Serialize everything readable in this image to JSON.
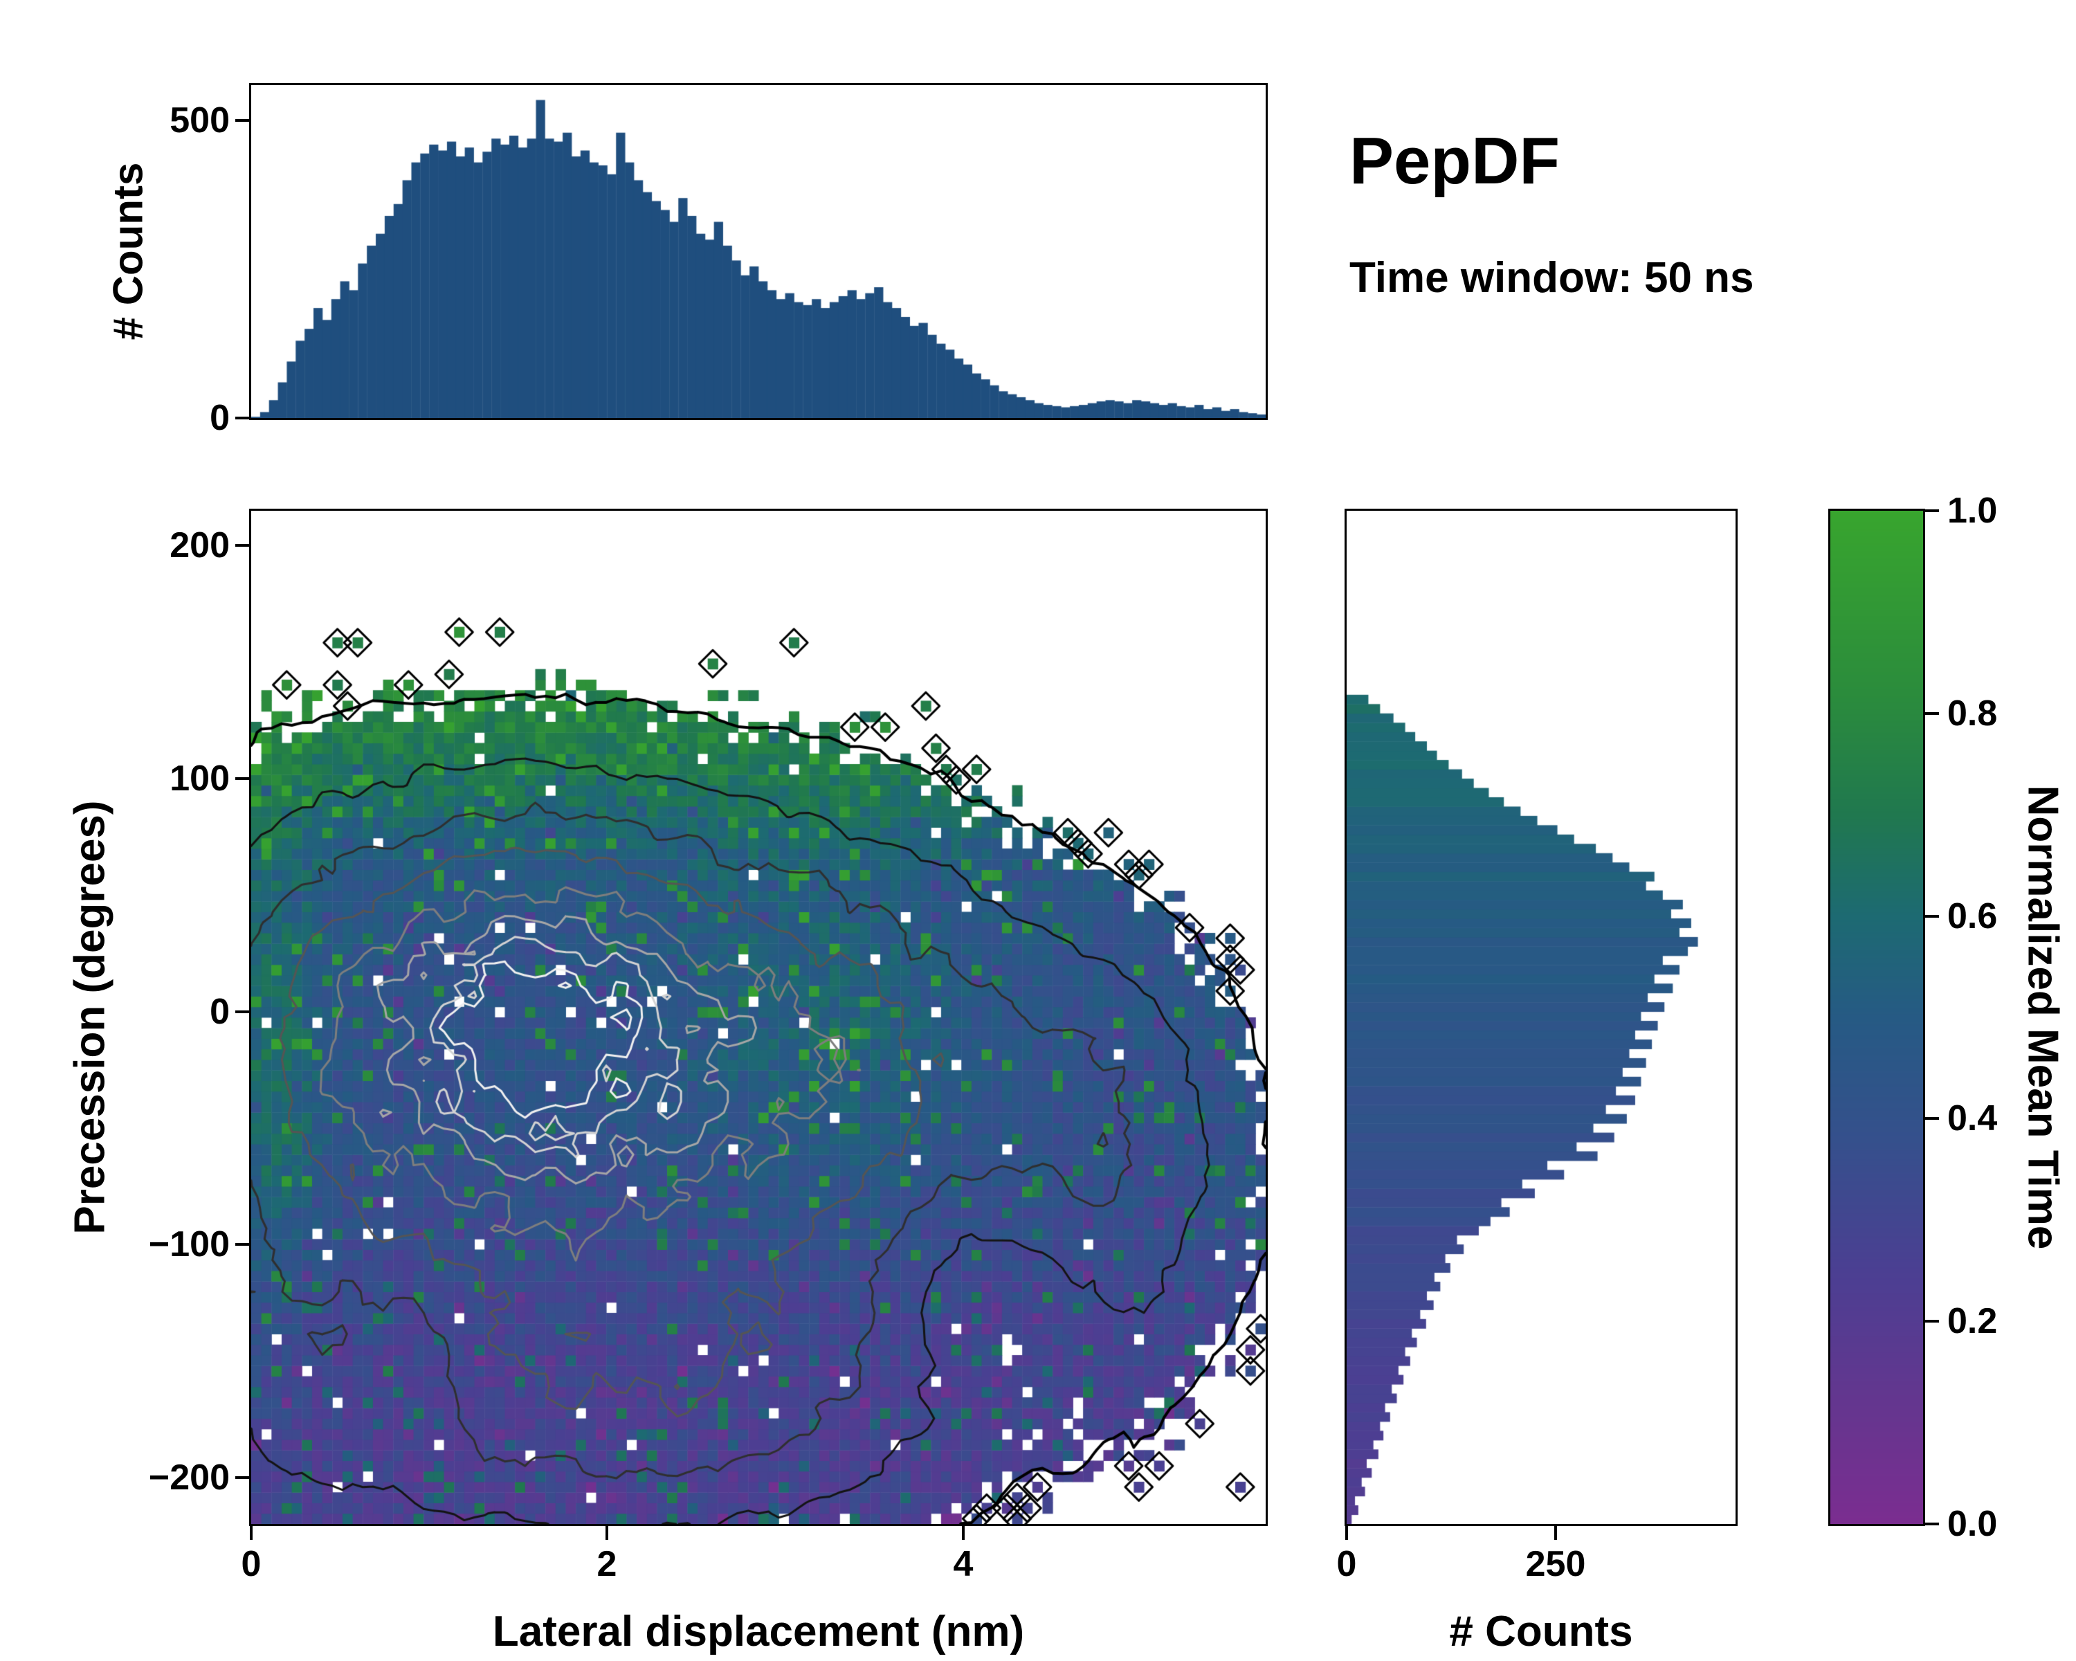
{
  "figure": {
    "title": "PepDF",
    "subtitle": "Time window: 50 ns"
  },
  "colors": {
    "background": "#ffffff",
    "axis": "#000000",
    "histogram_bar": "#1f4e7e",
    "colormap_stops": [
      [
        0.0,
        "#7b2d90"
      ],
      [
        0.12,
        "#64368f"
      ],
      [
        0.25,
        "#4b3f92"
      ],
      [
        0.38,
        "#35508c"
      ],
      [
        0.5,
        "#265a84"
      ],
      [
        0.6,
        "#1d6a72"
      ],
      [
        0.7,
        "#20784f"
      ],
      [
        0.82,
        "#2b8c3c"
      ],
      [
        1.0,
        "#38a52e"
      ]
    ]
  },
  "chart_data": [
    {
      "name": "top_histogram",
      "type": "bar",
      "xlabel": "",
      "ylabel": "# Counts",
      "xlim": [
        0,
        5.7
      ],
      "ylim": [
        0,
        560
      ],
      "yticks": [
        500,
        0
      ],
      "ytick_labels": [
        "500",
        "0"
      ],
      "bin_start": 0,
      "bin_width": 0.05,
      "values": [
        2,
        10,
        30,
        60,
        95,
        130,
        150,
        185,
        165,
        200,
        230,
        215,
        260,
        290,
        310,
        340,
        360,
        400,
        430,
        445,
        460,
        450,
        465,
        440,
        455,
        430,
        448,
        470,
        460,
        475,
        455,
        470,
        535,
        470,
        465,
        480,
        440,
        450,
        430,
        425,
        410,
        480,
        430,
        400,
        380,
        365,
        350,
        330,
        370,
        340,
        310,
        300,
        330,
        290,
        265,
        240,
        255,
        230,
        215,
        200,
        210,
        195,
        190,
        200,
        185,
        195,
        205,
        215,
        200,
        210,
        220,
        195,
        185,
        170,
        155,
        160,
        140,
        125,
        115,
        100,
        90,
        75,
        65,
        55,
        45,
        40,
        35,
        30,
        25,
        22,
        20,
        18,
        20,
        22,
        25,
        28,
        30,
        28,
        25,
        30,
        28,
        25,
        22,
        25,
        20,
        18,
        22,
        15,
        18,
        12,
        15,
        10,
        8,
        6
      ]
    },
    {
      "name": "joint_distribution",
      "type": "heatmap",
      "xlabel": "Lateral displacement (nm)",
      "ylabel": "Precession (degrees)",
      "color_meaning": "Normalized Mean Time",
      "xlim": [
        0,
        5.7
      ],
      "ylim": [
        -220,
        215
      ],
      "xticks": [
        0,
        2,
        4
      ],
      "xtick_labels": [
        "0",
        "2",
        "4"
      ],
      "yticks": [
        200,
        100,
        0,
        -100,
        -200
      ],
      "ytick_labels": [
        "200",
        "100",
        "0",
        "−100",
        "−200"
      ],
      "grid": {
        "nx": 100,
        "ny": 96
      },
      "generation": {
        "seed": 42,
        "value_seed": 7,
        "occupancy_threshold": 0.058,
        "blobs": [
          {
            "a": 1.0,
            "x": 1.55,
            "sx": 0.78,
            "y": -10,
            "sy": 60
          },
          {
            "a": 0.5,
            "x": 3.2,
            "sx": 0.75,
            "y": -25,
            "sy": 65
          },
          {
            "a": 0.42,
            "x": 2.0,
            "sx": 1.35,
            "y": -155,
            "sy": 48
          },
          {
            "a": 0.3,
            "x": 4.7,
            "sx": 0.55,
            "y": -60,
            "sy": 60
          },
          {
            "a": 0.25,
            "x": 0.25,
            "sx": 0.5,
            "y": -30,
            "sy": 80
          },
          {
            "a": -0.2,
            "x": 4.15,
            "sx": 0.45,
            "y": -115,
            "sy": 40
          },
          {
            "a": -0.15,
            "x": 0.85,
            "sx": 0.3,
            "y": -145,
            "sy": 30
          }
        ],
        "value_field": {
          "base": 0.42,
          "top_amp": 0.38,
          "top_y0": 88,
          "top_w": 18,
          "bot_amp": 0.16,
          "bot_y0": 110,
          "bot_w": 25,
          "left_amp": 0.22,
          "left_x": 0.12,
          "left_sx": 0.2,
          "left_y": -25,
          "left_sy": 75,
          "mid_amp": 0.13,
          "mid_x": 3.2,
          "mid_sx": 0.55,
          "mid_y": 0,
          "mid_sy": 60,
          "noise": 0.2,
          "speckle_prob": 0.06,
          "speckle_boost": 0.35
        },
        "contour_levels": [
          [
            0.058,
            "#000000",
            4
          ],
          [
            0.16,
            "#141414",
            3
          ],
          [
            0.3,
            "#2f2f2f",
            3
          ],
          [
            0.46,
            "#555555",
            3
          ],
          [
            0.62,
            "#7e7e7e",
            3
          ],
          [
            0.76,
            "#a6a6a6",
            3
          ],
          [
            0.88,
            "#d2d2d2",
            3
          ],
          [
            0.96,
            "#efefef",
            3
          ]
        ]
      }
    },
    {
      "name": "right_histogram",
      "type": "bar",
      "orientation": "horizontal",
      "xlabel": "# Counts",
      "ylabel": "",
      "xlim": [
        0,
        465
      ],
      "xticks": [
        0,
        250
      ],
      "xtick_labels": [
        "0",
        "250"
      ],
      "bin_start": -218,
      "bin_width": 4,
      "color_base": 0.46,
      "color_slope": 0.0012,
      "color_noise": 0.03,
      "seed": 11,
      "values": [
        6,
        14,
        10,
        22,
        18,
        30,
        24,
        38,
        32,
        44,
        40,
        52,
        46,
        60,
        54,
        68,
        62,
        76,
        70,
        84,
        78,
        95,
        88,
        104,
        96,
        112,
        105,
        124,
        118,
        140,
        132,
        158,
        172,
        195,
        185,
        225,
        210,
        260,
        240,
        300,
        275,
        320,
        295,
        335,
        310,
        345,
        322,
        352,
        330,
        358,
        338,
        365,
        345,
        372,
        352,
        380,
        360,
        390,
        368,
        398,
        378,
        408,
        420,
        398,
        412,
        388,
        402,
        378,
        358,
        368,
        338,
        318,
        298,
        272,
        252,
        228,
        208,
        188,
        170,
        152,
        138,
        122,
        108,
        96,
        82,
        70,
        56,
        40,
        26
      ]
    },
    {
      "name": "colorbar",
      "label": "Normalized Mean Time",
      "range": [
        0,
        1
      ],
      "ticks": [
        0.0,
        0.2,
        0.4,
        0.6,
        0.8,
        1.0
      ],
      "tick_labels": [
        "0.0",
        "0.2",
        "0.4",
        "0.6",
        "0.8",
        "1.0"
      ]
    }
  ]
}
